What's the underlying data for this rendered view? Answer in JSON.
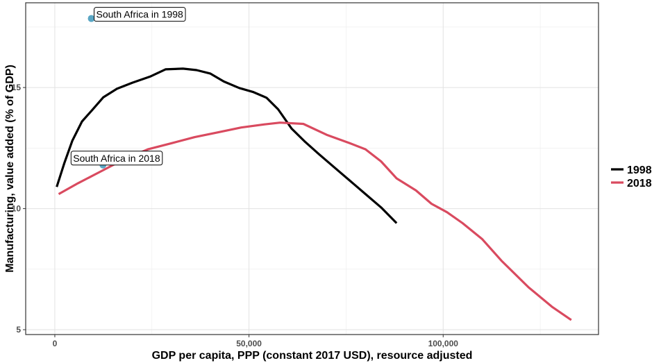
{
  "chart_data": {
    "type": "line",
    "title": "",
    "xlabel": "GDP per capita, PPP (constant 2017 USD), resource adjusted",
    "ylabel": "Manufacturing, value added (% of GDP)",
    "xlim": [
      -7500,
      140000
    ],
    "ylim": [
      4.8,
      18.5
    ],
    "grid": true,
    "legend_position": "right",
    "x_ticks": [
      {
        "value": 0,
        "label": "0"
      },
      {
        "value": 50000,
        "label": "50,000"
      },
      {
        "value": 100000,
        "label": "100,000"
      }
    ],
    "y_ticks": [
      {
        "value": 5,
        "label": "5"
      },
      {
        "value": 10,
        "label": "10"
      },
      {
        "value": 15,
        "label": "15"
      }
    ],
    "series": [
      {
        "name": "1998",
        "color": "#000000",
        "points": [
          [
            500,
            10.9
          ],
          [
            2500,
            11.9
          ],
          [
            4500,
            12.8
          ],
          [
            7000,
            13.6
          ],
          [
            9500,
            14.05
          ],
          [
            12500,
            14.6
          ],
          [
            16000,
            14.95
          ],
          [
            20000,
            15.2
          ],
          [
            24500,
            15.45
          ],
          [
            28500,
            15.75
          ],
          [
            33000,
            15.78
          ],
          [
            36500,
            15.72
          ],
          [
            40000,
            15.58
          ],
          [
            43500,
            15.25
          ],
          [
            47500,
            14.98
          ],
          [
            51000,
            14.82
          ],
          [
            54500,
            14.58
          ],
          [
            57500,
            14.1
          ],
          [
            61000,
            13.3
          ],
          [
            64500,
            12.75
          ],
          [
            68000,
            12.25
          ],
          [
            72000,
            11.7
          ],
          [
            76000,
            11.15
          ],
          [
            80000,
            10.6
          ],
          [
            84000,
            10.05
          ],
          [
            88000,
            9.4
          ]
        ]
      },
      {
        "name": "2018",
        "color": "#d94a5f",
        "points": [
          [
            1000,
            10.6
          ],
          [
            6000,
            11.05
          ],
          [
            12000,
            11.55
          ],
          [
            18000,
            12.05
          ],
          [
            24000,
            12.45
          ],
          [
            30000,
            12.7
          ],
          [
            36000,
            12.95
          ],
          [
            42000,
            13.15
          ],
          [
            48000,
            13.35
          ],
          [
            54000,
            13.48
          ],
          [
            58000,
            13.55
          ],
          [
            64000,
            13.5
          ],
          [
            70000,
            13.05
          ],
          [
            76000,
            12.7
          ],
          [
            80000,
            12.45
          ],
          [
            84000,
            11.95
          ],
          [
            88000,
            11.25
          ],
          [
            93000,
            10.75
          ],
          [
            97000,
            10.2
          ],
          [
            101000,
            9.85
          ],
          [
            105000,
            9.4
          ],
          [
            110000,
            8.75
          ],
          [
            115000,
            7.85
          ],
          [
            122000,
            6.75
          ],
          [
            128000,
            5.95
          ],
          [
            133000,
            5.4
          ]
        ]
      }
    ],
    "annotations": [
      {
        "label": "South Africa in 1998",
        "x": 9400,
        "y": 17.85,
        "point_color": "#5aa6c4"
      },
      {
        "label": "South Africa in 2018",
        "x": 12400,
        "y": 11.8,
        "point_color": "#5aa6c4"
      }
    ]
  }
}
